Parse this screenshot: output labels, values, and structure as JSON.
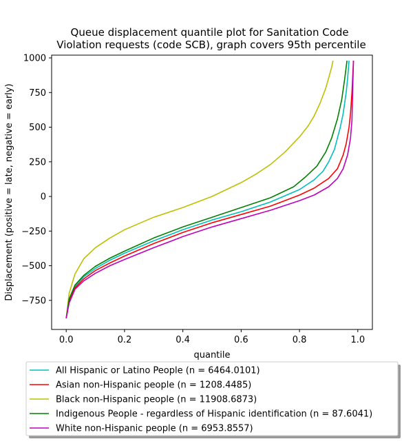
{
  "chart_data": {
    "type": "line",
    "title": "Queue displacement quantile plot for Sanitation Code\nViolation  requests (code SCB), graph covers 95th percentile",
    "xlabel": "quantile",
    "ylabel": "Displacement (positive = late, negative = early)",
    "xlim": [
      -0.05,
      1.05
    ],
    "ylim": [
      -960,
      1020
    ],
    "xticks": [
      0.0,
      0.2,
      0.4,
      0.6,
      0.8,
      1.0
    ],
    "xtick_labels": [
      "0.0",
      "0.2",
      "0.4",
      "0.6",
      "0.8",
      "1.0"
    ],
    "yticks": [
      -750,
      -500,
      -250,
      0,
      250,
      500,
      750,
      1000
    ],
    "ytick_labels": [
      "−750",
      "−500",
      "−250",
      "0",
      "250",
      "500",
      "750",
      "1000"
    ],
    "grid": false,
    "legend_position": "below",
    "series": [
      {
        "name": "All Hispanic or Latino People (n = 6464.0101)",
        "color": "#00bfbf",
        "x": [
          0.0,
          0.01,
          0.03,
          0.06,
          0.1,
          0.15,
          0.2,
          0.3,
          0.4,
          0.5,
          0.6,
          0.7,
          0.8,
          0.85,
          0.88,
          0.9,
          0.92,
          0.94,
          0.95,
          0.96,
          0.965,
          0.97
        ],
        "y": [
          -880,
          -750,
          -650,
          -580,
          -520,
          -460,
          -410,
          -320,
          -240,
          -170,
          -110,
          -40,
          50,
          120,
          180,
          250,
          340,
          500,
          600,
          750,
          850,
          980
        ]
      },
      {
        "name": "Asian non-Hispanic people (n = 1208.4485)",
        "color": "#ff0000",
        "x": [
          0.0,
          0.01,
          0.03,
          0.06,
          0.1,
          0.15,
          0.2,
          0.3,
          0.4,
          0.5,
          0.6,
          0.7,
          0.8,
          0.85,
          0.9,
          0.93,
          0.95,
          0.96,
          0.97,
          0.975,
          0.98,
          0.985
        ],
        "y": [
          -880,
          -760,
          -660,
          -595,
          -535,
          -480,
          -430,
          -340,
          -260,
          -190,
          -130,
          -70,
          10,
          60,
          130,
          200,
          300,
          380,
          500,
          600,
          750,
          980
        ]
      },
      {
        "name": "Black non-Hispanic people (n = 11908.6873)",
        "color": "#bfbf00",
        "x": [
          0.0,
          0.01,
          0.03,
          0.06,
          0.1,
          0.15,
          0.2,
          0.3,
          0.4,
          0.5,
          0.6,
          0.65,
          0.7,
          0.75,
          0.8,
          0.83,
          0.85,
          0.87,
          0.89,
          0.91,
          0.915
        ],
        "y": [
          -880,
          -700,
          -560,
          -450,
          -370,
          -300,
          -240,
          -150,
          -80,
          0,
          100,
          160,
          230,
          320,
          430,
          510,
          580,
          670,
          780,
          930,
          980
        ]
      },
      {
        "name": "Indigenous People - regardless of Hispanic identification (n = 87.6041)",
        "color": "#008000",
        "x": [
          0.0,
          0.01,
          0.03,
          0.06,
          0.1,
          0.15,
          0.2,
          0.3,
          0.4,
          0.5,
          0.6,
          0.7,
          0.78,
          0.82,
          0.86,
          0.89,
          0.91,
          0.93,
          0.945,
          0.955,
          0.963
        ],
        "y": [
          -880,
          -740,
          -640,
          -570,
          -505,
          -445,
          -395,
          -300,
          -220,
          -150,
          -80,
          -10,
          70,
          140,
          220,
          320,
          420,
          560,
          700,
          850,
          980
        ]
      },
      {
        "name": "White non-Hispanic people (n = 6953.8557)",
        "color": "#bf00bf",
        "x": [
          0.0,
          0.01,
          0.03,
          0.06,
          0.1,
          0.15,
          0.2,
          0.3,
          0.4,
          0.5,
          0.6,
          0.7,
          0.8,
          0.85,
          0.9,
          0.93,
          0.95,
          0.965,
          0.975,
          0.98,
          0.985
        ],
        "y": [
          -880,
          -770,
          -670,
          -610,
          -555,
          -500,
          -455,
          -370,
          -290,
          -220,
          -160,
          -100,
          -30,
          10,
          70,
          130,
          200,
          300,
          420,
          550,
          980
        ]
      }
    ]
  }
}
